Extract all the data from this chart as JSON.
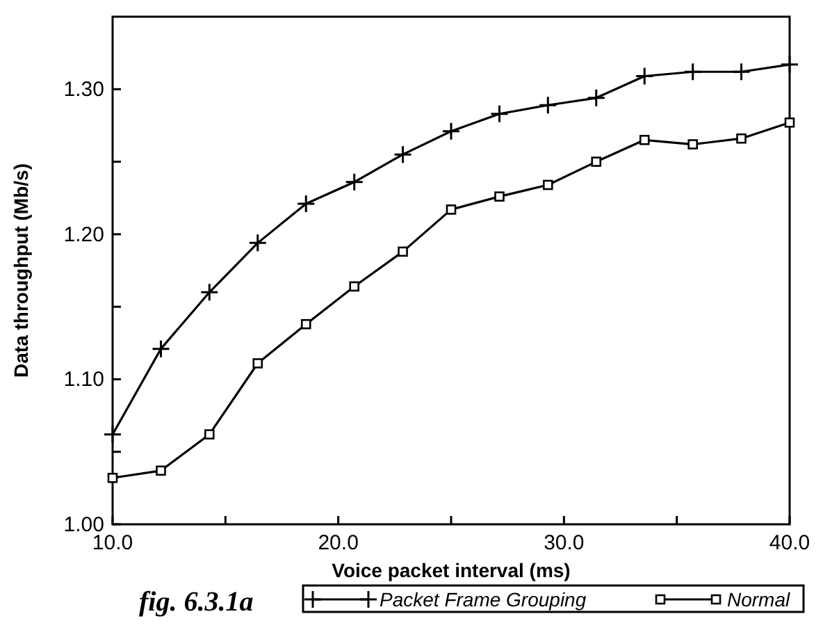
{
  "chart_data": {
    "type": "line",
    "xlabel": "Voice packet interval (ms)",
    "ylabel": "Data throughput (Mb/s)",
    "x": [
      10,
      12.14,
      14.29,
      16.43,
      18.57,
      20.71,
      22.86,
      25,
      27.14,
      29.29,
      31.43,
      33.57,
      35.71,
      37.86,
      40
    ],
    "series": [
      {
        "name": "Packet Frame Grouping",
        "color": "#000000",
        "marker": "cross",
        "values": [
          1.062,
          1.121,
          1.16,
          1.194,
          1.221,
          1.236,
          1.255,
          1.271,
          1.283,
          1.289,
          1.294,
          1.309,
          1.312,
          1.312,
          1.317
        ]
      },
      {
        "name": "Normal",
        "color": "#000000",
        "marker": "square",
        "values": [
          1.032,
          1.037,
          1.062,
          1.111,
          1.138,
          1.164,
          1.188,
          1.217,
          1.226,
          1.234,
          1.25,
          1.265,
          1.262,
          1.266,
          1.277
        ]
      }
    ],
    "xlim": [
      10,
      40
    ],
    "xticks": [
      {
        "value": 10,
        "label": "10.0"
      },
      {
        "value": 15,
        "label": null
      },
      {
        "value": 20,
        "label": "20.0"
      },
      {
        "value": 25,
        "label": null
      },
      {
        "value": 30,
        "label": "30.0"
      },
      {
        "value": 35,
        "label": null
      },
      {
        "value": 40,
        "label": "40.0"
      }
    ],
    "ylim": [
      1.0,
      1.35
    ],
    "yticks": [
      {
        "value": 1.0,
        "label": "1.00"
      },
      {
        "value": 1.05,
        "label": null
      },
      {
        "value": 1.1,
        "label": "1.10"
      },
      {
        "value": 1.15,
        "label": null
      },
      {
        "value": 1.2,
        "label": "1.20"
      },
      {
        "value": 1.25,
        "label": null
      },
      {
        "value": 1.3,
        "label": "1.30"
      }
    ],
    "grid": false,
    "legend": "bottom",
    "line_style": "solid",
    "annotations": [
      "fig. 6.3.1a"
    ]
  }
}
